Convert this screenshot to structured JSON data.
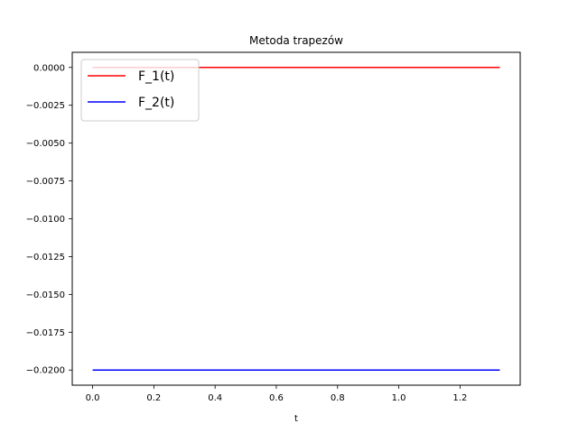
{
  "chart_data": {
    "type": "line",
    "title": "Metoda trapezów",
    "xlabel": "t",
    "ylabel": "",
    "xlim": [
      -0.0665,
      1.3965
    ],
    "ylim": [
      -0.021,
      0.001
    ],
    "x_ticks": [
      0.0,
      0.2,
      0.4,
      0.6,
      0.8,
      1.0,
      1.2
    ],
    "x_tick_labels": [
      "0.0",
      "0.2",
      "0.4",
      "0.6",
      "0.8",
      "1.0",
      "1.2"
    ],
    "y_ticks": [
      0.0,
      -0.0025,
      -0.005,
      -0.0075,
      -0.01,
      -0.0125,
      -0.015,
      -0.0175,
      -0.02
    ],
    "y_tick_labels": [
      "0.0000",
      "−0.0025",
      "−0.0050",
      "−0.0075",
      "−0.0100",
      "−0.0125",
      "−0.0150",
      "−0.0175",
      "−0.0200"
    ],
    "grid": false,
    "legend_position": "top-left",
    "series": [
      {
        "name": "F_1(t)",
        "color": "#ff0000",
        "x": [
          0.0,
          1.33
        ],
        "y": [
          0.0,
          0.0
        ]
      },
      {
        "name": "F_2(t)",
        "color": "#0000ff",
        "x": [
          0.0,
          1.33
        ],
        "y": [
          -0.02,
          -0.02
        ]
      }
    ]
  }
}
